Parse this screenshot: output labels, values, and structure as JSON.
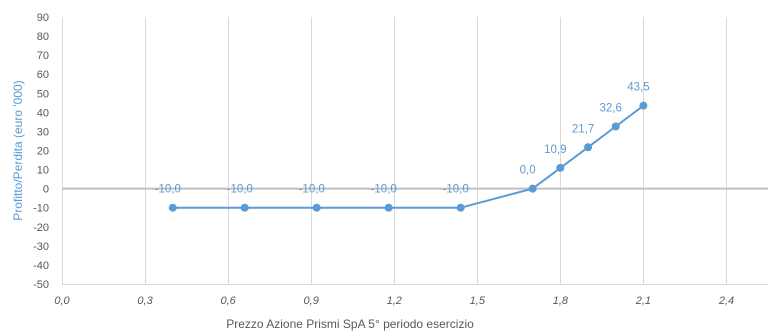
{
  "chart_data": {
    "type": "line",
    "xlabel": "Prezzo Azione Prismi SpA 5° periodo esercizio",
    "ylabel": "Profitto/Perdita  (euro '000)",
    "xlim": [
      0.0,
      2.55
    ],
    "ylim": [
      -50,
      90
    ],
    "x_ticks": [
      0.0,
      0.3,
      0.6,
      0.9,
      1.2,
      1.5,
      1.8,
      2.1,
      2.4
    ],
    "x_tick_labels": [
      "0,0",
      "0,3",
      "0,6",
      "0,9",
      "1,2",
      "1,5",
      "1,8",
      "2,1",
      "2,4"
    ],
    "y_ticks": [
      -50,
      -40,
      -30,
      -20,
      -10,
      0,
      10,
      20,
      30,
      40,
      50,
      60,
      70,
      80,
      90
    ],
    "y_tick_labels": [
      "-50",
      "-40",
      "-30",
      "-20",
      "-10",
      "0",
      "10",
      "20",
      "30",
      "40",
      "50",
      "60",
      "70",
      "80",
      "90"
    ],
    "grid": "vertical",
    "series": [
      {
        "color": "#5b9bd5",
        "points": [
          {
            "x": 0.4,
            "y": -10.0,
            "label": "-10,0"
          },
          {
            "x": 0.66,
            "y": -10.0,
            "label": "-10,0"
          },
          {
            "x": 0.92,
            "y": -10.0,
            "label": "-10,0"
          },
          {
            "x": 1.18,
            "y": -10.0,
            "label": "-10,0"
          },
          {
            "x": 1.44,
            "y": -10.0,
            "label": "-10,0"
          },
          {
            "x": 1.7,
            "y": 0.0,
            "label": "0,0"
          },
          {
            "x": 1.8,
            "y": 10.9,
            "label": "10,9"
          },
          {
            "x": 1.9,
            "y": 21.7,
            "label": "21,7"
          },
          {
            "x": 2.0,
            "y": 32.6,
            "label": "32,6"
          },
          {
            "x": 2.1,
            "y": 43.5,
            "label": "43,5"
          }
        ]
      }
    ],
    "colors": {
      "series": "#5b9bd5",
      "ylabel": "#5b9bd5",
      "xlabel": "#595959",
      "grid": "#d9d9d9",
      "zero_line": "#bfbfbf"
    }
  }
}
